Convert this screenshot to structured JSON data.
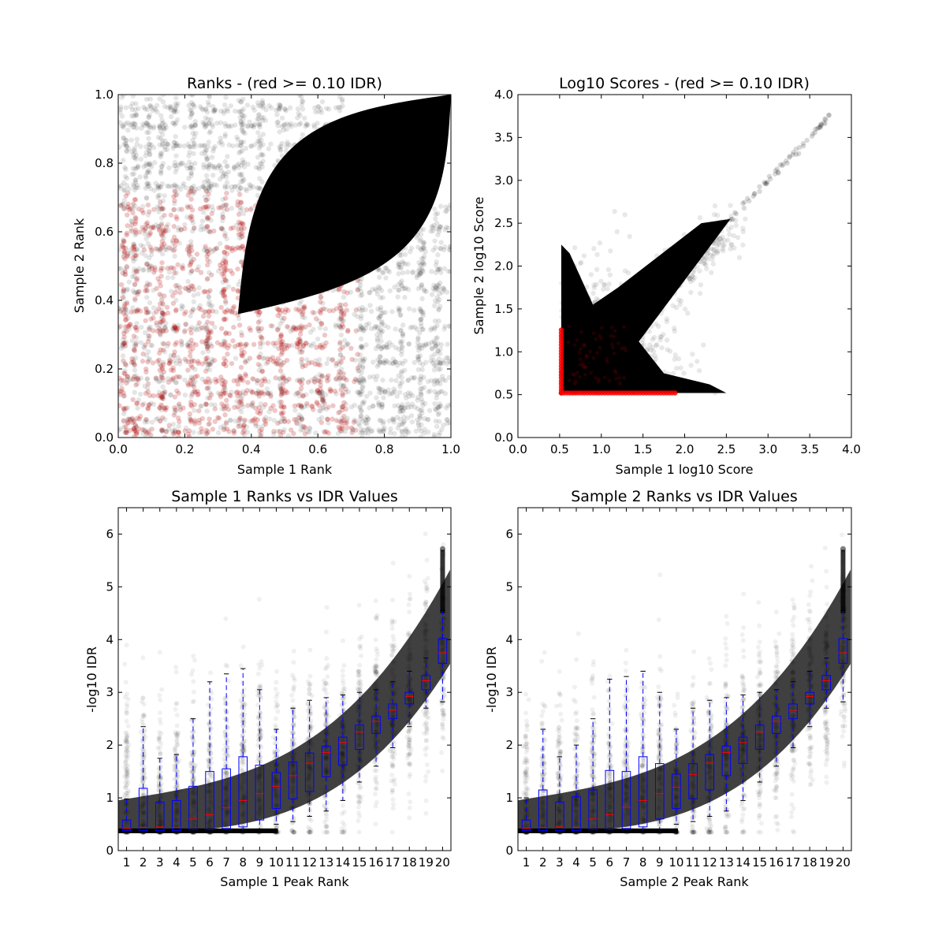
{
  "chart_data": [
    {
      "type": "scatter",
      "title": "Ranks - (red >= 0.10 IDR)",
      "xlabel": "Sample 1 Rank",
      "ylabel": "Sample 2 Rank",
      "xlim": [
        0,
        1
      ],
      "ylim": [
        0,
        1
      ],
      "x_ticks": [
        "0.0",
        "0.2",
        "0.4",
        "0.6",
        "0.8",
        "1.0"
      ],
      "y_ticks": [
        "0.0",
        "0.2",
        "0.4",
        "0.6",
        "0.8",
        "1.0"
      ],
      "colors": {
        "pass": "#000000",
        "fail": "#b00000"
      },
      "dense_regions": [
        {
          "description_free": true,
          "from": [
            0.36,
            0.4
          ],
          "to": [
            1.0,
            1.0
          ]
        }
      ]
    },
    {
      "type": "scatter",
      "title": "Log10 Scores - (red >= 0.10 IDR)",
      "xlabel": "Sample 1 log10 Score",
      "ylabel": "Sample 2 log10 Score",
      "xlim": [
        0,
        4
      ],
      "ylim": [
        0,
        4
      ],
      "x_ticks": [
        "0.0",
        "0.5",
        "1.0",
        "1.5",
        "2.0",
        "2.5",
        "3.0",
        "3.5",
        "4.0"
      ],
      "y_ticks": [
        "0.0",
        "0.5",
        "1.0",
        "1.5",
        "2.0",
        "2.5",
        "3.0",
        "3.5",
        "4.0"
      ],
      "min_score": 0.52,
      "diagonal_max": 3.75,
      "colors": {
        "pass": "#000000",
        "fail": "#ff0000"
      }
    },
    {
      "type": "box",
      "title": "Sample 1 Ranks vs IDR Values",
      "xlabel": "Sample 1 Peak Rank",
      "ylabel": "-log10 IDR",
      "ylim": [
        0,
        6.5
      ],
      "y_ticks": [
        "0",
        "1",
        "2",
        "3",
        "4",
        "5",
        "6"
      ],
      "categories": [
        "1",
        "2",
        "3",
        "4",
        "5",
        "6",
        "7",
        "8",
        "9",
        "10",
        "11",
        "12",
        "13",
        "14",
        "15",
        "16",
        "17",
        "18",
        "19",
        "20"
      ],
      "boxes": [
        {
          "whislo": 0.38,
          "q1": 0.38,
          "med": 0.42,
          "q3": 0.58,
          "whishi": 0.98
        },
        {
          "whislo": 0.38,
          "q1": 0.38,
          "med": 0.44,
          "q3": 1.18,
          "whishi": 2.35
        },
        {
          "whislo": 0.38,
          "q1": 0.38,
          "med": 0.45,
          "q3": 0.92,
          "whishi": 1.75
        },
        {
          "whislo": 0.38,
          "q1": 0.38,
          "med": 0.44,
          "q3": 0.95,
          "whishi": 1.82
        },
        {
          "whislo": 0.38,
          "q1": 0.4,
          "med": 0.6,
          "q3": 1.22,
          "whishi": 2.5
        },
        {
          "whislo": 0.38,
          "q1": 0.4,
          "med": 0.68,
          "q3": 1.5,
          "whishi": 3.2
        },
        {
          "whislo": 0.38,
          "q1": 0.42,
          "med": 0.82,
          "q3": 1.55,
          "whishi": 3.35
        },
        {
          "whislo": 0.38,
          "q1": 0.45,
          "med": 0.95,
          "q3": 1.78,
          "whishi": 3.45
        },
        {
          "whislo": 0.4,
          "q1": 0.58,
          "med": 1.08,
          "q3": 1.62,
          "whishi": 3.05
        },
        {
          "whislo": 0.5,
          "q1": 0.8,
          "med": 1.22,
          "q3": 1.48,
          "whishi": 2.3
        },
        {
          "whislo": 0.55,
          "q1": 0.98,
          "med": 1.42,
          "q3": 1.68,
          "whishi": 2.7
        },
        {
          "whislo": 0.65,
          "q1": 1.12,
          "med": 1.66,
          "q3": 1.85,
          "whishi": 2.85
        },
        {
          "whislo": 0.75,
          "q1": 1.4,
          "med": 1.86,
          "q3": 1.98,
          "whishi": 2.9
        },
        {
          "whislo": 0.95,
          "q1": 1.62,
          "med": 2.05,
          "q3": 2.15,
          "whishi": 2.95
        },
        {
          "whislo": 1.3,
          "q1": 1.92,
          "med": 2.25,
          "q3": 2.38,
          "whishi": 3.0
        },
        {
          "whislo": 1.6,
          "q1": 2.22,
          "med": 2.45,
          "q3": 2.55,
          "whishi": 3.05
        },
        {
          "whislo": 1.95,
          "q1": 2.5,
          "med": 2.66,
          "q3": 2.78,
          "whishi": 3.2
        },
        {
          "whislo": 2.35,
          "q1": 2.78,
          "med": 2.92,
          "q3": 3.0,
          "whishi": 3.4
        },
        {
          "whislo": 2.7,
          "q1": 3.05,
          "med": 3.22,
          "q3": 3.32,
          "whishi": 3.65
        },
        {
          "whislo": 2.82,
          "q1": 3.55,
          "med": 3.75,
          "q3": 4.02,
          "whishi": 4.55
        }
      ]
    },
    {
      "type": "box",
      "title": "Sample 2 Ranks vs IDR Values",
      "xlabel": "Sample 2 Peak Rank",
      "ylabel": "-log10 IDR",
      "ylim": [
        0,
        6.5
      ],
      "y_ticks": [
        "0",
        "1",
        "2",
        "3",
        "4",
        "5",
        "6"
      ],
      "categories": [
        "1",
        "2",
        "3",
        "4",
        "5",
        "6",
        "7",
        "8",
        "9",
        "10",
        "11",
        "12",
        "13",
        "14",
        "15",
        "16",
        "17",
        "18",
        "19",
        "20"
      ],
      "boxes": [
        {
          "whislo": 0.38,
          "q1": 0.38,
          "med": 0.42,
          "q3": 0.58,
          "whishi": 1.0
        },
        {
          "whislo": 0.38,
          "q1": 0.38,
          "med": 0.44,
          "q3": 1.15,
          "whishi": 2.3
        },
        {
          "whislo": 0.38,
          "q1": 0.38,
          "med": 0.45,
          "q3": 0.92,
          "whishi": 1.78
        },
        {
          "whislo": 0.38,
          "q1": 0.38,
          "med": 0.44,
          "q3": 1.02,
          "whishi": 2.0
        },
        {
          "whislo": 0.38,
          "q1": 0.4,
          "med": 0.6,
          "q3": 1.15,
          "whishi": 2.5
        },
        {
          "whislo": 0.38,
          "q1": 0.4,
          "med": 0.68,
          "q3": 1.52,
          "whishi": 3.25
        },
        {
          "whislo": 0.38,
          "q1": 0.42,
          "med": 0.82,
          "q3": 1.5,
          "whishi": 3.3
        },
        {
          "whislo": 0.38,
          "q1": 0.45,
          "med": 0.95,
          "q3": 1.78,
          "whishi": 3.4
        },
        {
          "whislo": 0.4,
          "q1": 0.6,
          "med": 1.08,
          "q3": 1.65,
          "whishi": 3.0
        },
        {
          "whislo": 0.5,
          "q1": 0.8,
          "med": 1.2,
          "q3": 1.45,
          "whishi": 2.3
        },
        {
          "whislo": 0.55,
          "q1": 0.98,
          "med": 1.44,
          "q3": 1.65,
          "whishi": 2.7
        },
        {
          "whislo": 0.65,
          "q1": 1.15,
          "med": 1.66,
          "q3": 1.82,
          "whishi": 2.85
        },
        {
          "whislo": 0.75,
          "q1": 1.42,
          "med": 1.86,
          "q3": 1.98,
          "whishi": 2.9
        },
        {
          "whislo": 0.95,
          "q1": 1.65,
          "med": 2.05,
          "q3": 2.15,
          "whishi": 2.95
        },
        {
          "whislo": 1.3,
          "q1": 1.92,
          "med": 2.25,
          "q3": 2.38,
          "whishi": 3.0
        },
        {
          "whislo": 1.6,
          "q1": 2.22,
          "med": 2.45,
          "q3": 2.55,
          "whishi": 3.05
        },
        {
          "whislo": 1.95,
          "q1": 2.5,
          "med": 2.66,
          "q3": 2.78,
          "whishi": 3.2
        },
        {
          "whislo": 2.35,
          "q1": 2.78,
          "med": 2.92,
          "q3": 3.0,
          "whishi": 3.4
        },
        {
          "whislo": 2.7,
          "q1": 3.05,
          "med": 3.22,
          "q3": 3.32,
          "whishi": 3.65
        },
        {
          "whislo": 2.82,
          "q1": 3.55,
          "med": 3.75,
          "q3": 4.02,
          "whishi": 4.55
        }
      ]
    }
  ]
}
